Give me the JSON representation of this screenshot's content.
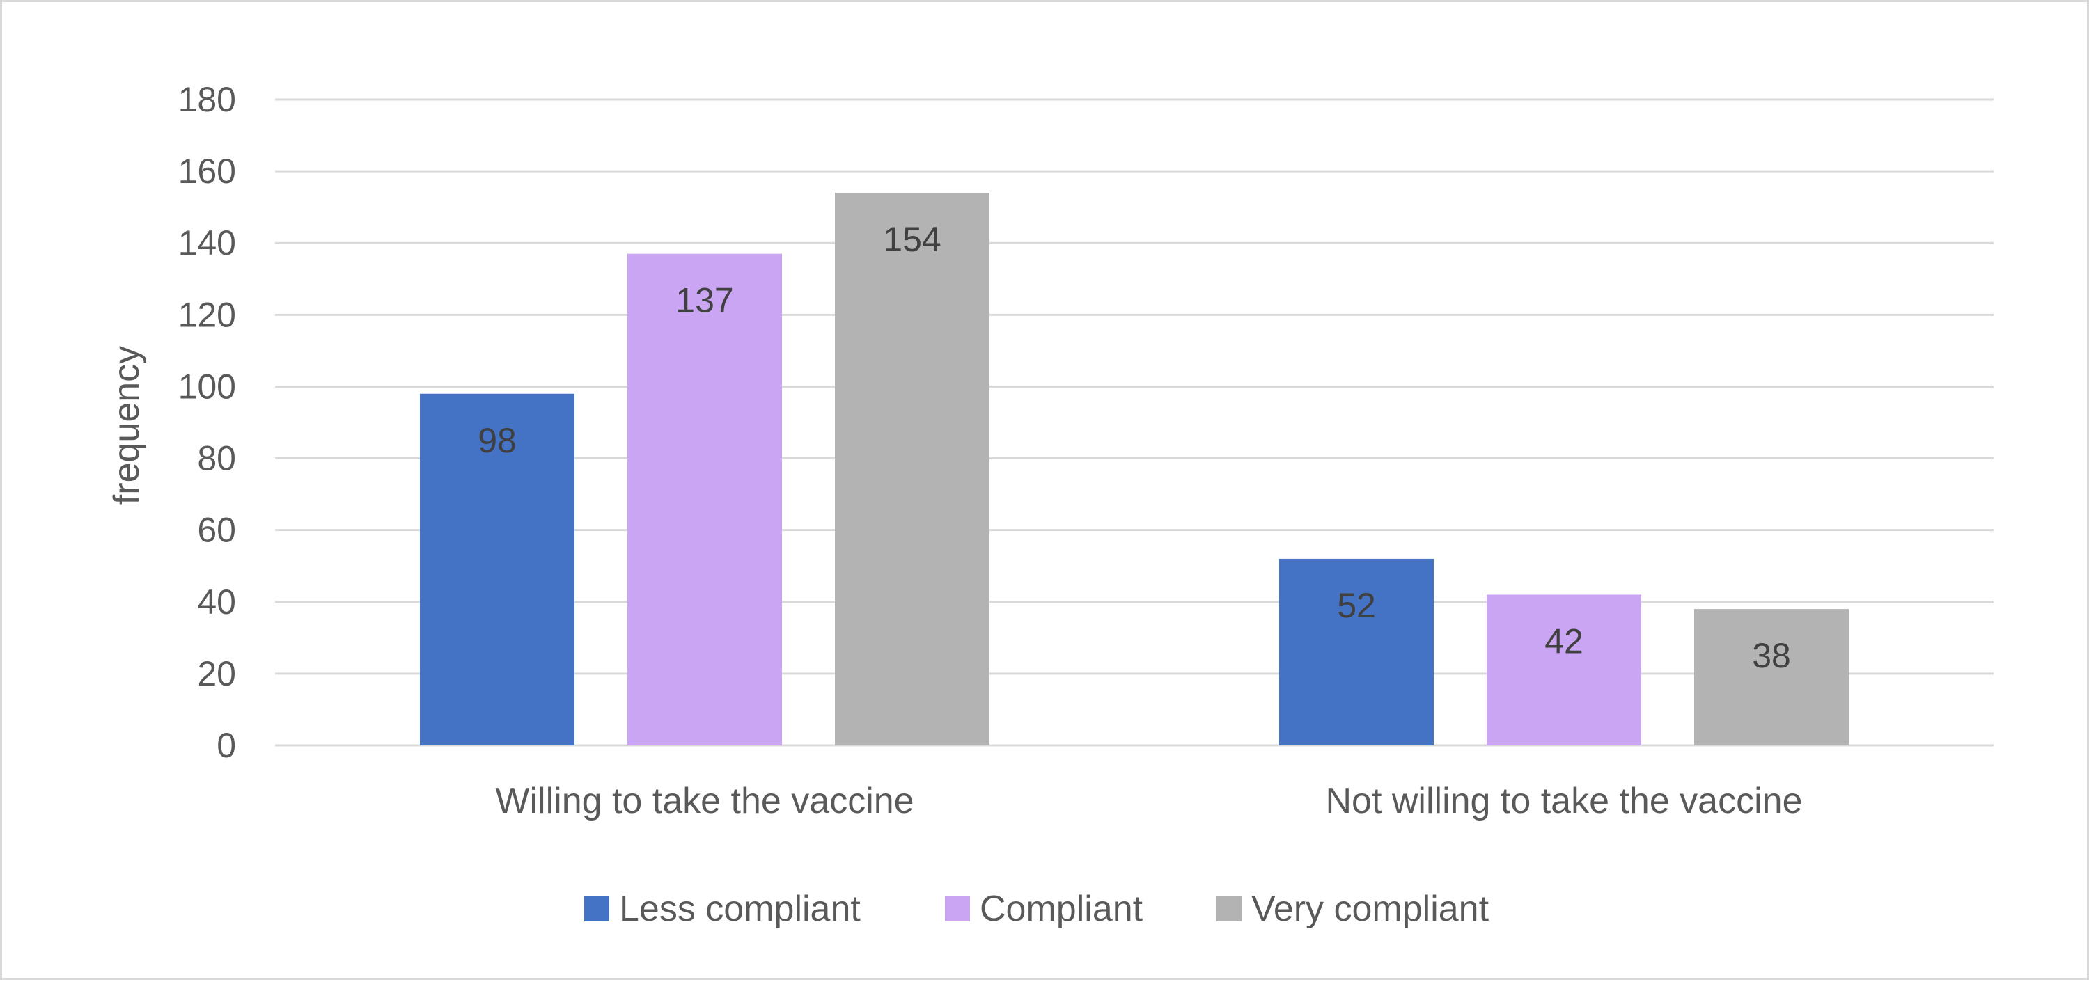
{
  "chart_data": {
    "type": "bar",
    "categories": [
      "Willing to take the vaccine",
      "Not willing to take the vaccine"
    ],
    "series": [
      {
        "name": "Less compliant",
        "color": "#4472c4",
        "values": [
          98,
          52
        ]
      },
      {
        "name": "Compliant",
        "color": "#c9a5f3",
        "values": [
          137,
          42
        ]
      },
      {
        "name": "Very compliant",
        "color": "#b3b3b3",
        "values": [
          154,
          38
        ]
      }
    ],
    "title": "",
    "xlabel": "",
    "ylabel": "frequency",
    "ylim": [
      0,
      180
    ],
    "yticks": [
      0,
      20,
      40,
      60,
      80,
      100,
      120,
      140,
      160,
      180
    ],
    "grid": true,
    "legend_position": "bottom",
    "data_labels": true
  }
}
